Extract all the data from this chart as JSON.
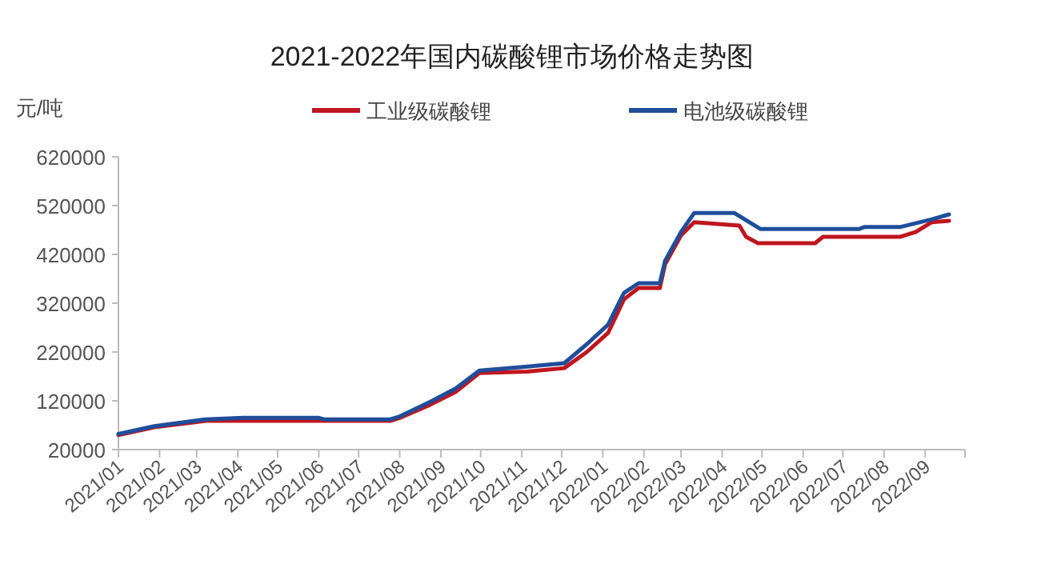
{
  "chart_data": {
    "type": "line",
    "title": "2021-2022年国内碳酸锂市场价格走势图",
    "ylabel": "元/吨",
    "xlim": [
      "2021-01-01",
      "2022-10-01"
    ],
    "xticks": [
      {
        "value": "2021-01",
        "label": "2021/01"
      },
      {
        "value": "2021-02",
        "label": "2021/02"
      },
      {
        "value": "2021-03",
        "label": "2021/03"
      },
      {
        "value": "2021-04",
        "label": "2021/04"
      },
      {
        "value": "2021-05",
        "label": "2021/05"
      },
      {
        "value": "2021-06",
        "label": "2021/06"
      },
      {
        "value": "2021-07",
        "label": "2021/07"
      },
      {
        "value": "2021-08",
        "label": "2021/08"
      },
      {
        "value": "2021-09",
        "label": "2021/09"
      },
      {
        "value": "2021-10",
        "label": "2021/10"
      },
      {
        "value": "2021-11",
        "label": "2021/11"
      },
      {
        "value": "2021-12",
        "label": "2021/12"
      },
      {
        "value": "2022-01",
        "label": "2022/01"
      },
      {
        "value": "2022-02",
        "label": "2022/02"
      },
      {
        "value": "2022-03",
        "label": "2022/03"
      },
      {
        "value": "2022-04",
        "label": "2022/04"
      },
      {
        "value": "2022-05",
        "label": "2022/05"
      },
      {
        "value": "2022-06",
        "label": "2022/06"
      },
      {
        "value": "2022-07",
        "label": "2022/07"
      },
      {
        "value": "2022-08",
        "label": "2022/08"
      },
      {
        "value": "2022-09",
        "label": "2022/09"
      },
      {
        "value": "2022-10",
        "label": null
      }
    ],
    "ylim": [
      20000,
      620000
    ],
    "yticks": [
      20000,
      120000,
      220000,
      320000,
      420000,
      520000,
      620000
    ],
    "grid": false,
    "legend": "top",
    "marker": "none",
    "line_style": "solid",
    "series": [
      {
        "name": "工业级碳酸锂",
        "color": "#c0161f",
        "x": [
          "2021-01-01",
          "2021-01-28",
          "2021-03-08",
          "2021-07-25",
          "2021-08-01",
          "2021-08-24",
          "2021-09-12",
          "2021-09-30",
          "2021-11-05",
          "2021-12-03",
          "2021-12-20",
          "2022-01-05",
          "2022-01-17",
          "2022-01-28",
          "2022-02-13",
          "2022-02-17",
          "2022-03-01",
          "2022-03-11",
          "2022-04-14",
          "2022-04-19",
          "2022-04-28",
          "2022-06-10",
          "2022-06-16",
          "2022-08-13",
          "2022-08-25",
          "2022-09-06",
          "2022-09-19"
        ],
        "values": [
          50000,
          66000,
          79000,
          79000,
          85000,
          112000,
          138000,
          177000,
          180000,
          187000,
          220000,
          259000,
          328000,
          351000,
          351000,
          400000,
          459000,
          486000,
          479000,
          456000,
          443000,
          443000,
          456000,
          456000,
          466000,
          486000,
          489000
        ]
      },
      {
        "name": "电池级碳酸锂",
        "color": "#1f4e9a",
        "x": [
          "2021-01-01",
          "2021-01-28",
          "2021-03-08",
          "2021-04-05",
          "2021-06-01",
          "2021-06-05",
          "2021-07-25",
          "2021-08-01",
          "2021-08-24",
          "2021-09-12",
          "2021-09-30",
          "2021-11-05",
          "2021-12-03",
          "2021-12-20",
          "2022-01-05",
          "2022-01-17",
          "2022-01-28",
          "2022-02-13",
          "2022-02-17",
          "2022-03-01",
          "2022-03-11",
          "2022-04-10",
          "2022-04-30",
          "2022-07-13",
          "2022-07-17",
          "2022-08-13",
          "2022-09-06",
          "2022-09-19"
        ],
        "values": [
          52000,
          68000,
          82000,
          85000,
          85000,
          82000,
          82000,
          88000,
          118000,
          145000,
          182000,
          190000,
          197000,
          236000,
          276000,
          341000,
          361000,
          361000,
          407000,
          466000,
          505000,
          505000,
          472000,
          472000,
          476000,
          476000,
          492000,
          502000
        ]
      }
    ]
  }
}
